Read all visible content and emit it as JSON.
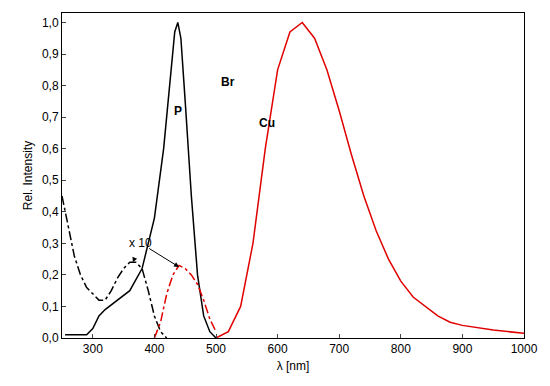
{
  "chart_data": {
    "type": "line",
    "x_label": "λ [nm]",
    "y_label": "Rel. Intensity",
    "xlim": [
      250,
      1000
    ],
    "ylim": [
      0,
      1.03
    ],
    "xticks": [
      300,
      400,
      500,
      600,
      700,
      800,
      900,
      1000
    ],
    "yticks": [
      {
        "value": 0,
        "label": "0,0"
      },
      {
        "value": 0.1,
        "label": "0,1"
      },
      {
        "value": 0.2,
        "label": "0,2"
      },
      {
        "value": 0.3,
        "label": "0,3"
      },
      {
        "value": 0.4,
        "label": "0,4"
      },
      {
        "value": 0.5,
        "label": "0,5"
      },
      {
        "value": 0.6,
        "label": "0,6"
      },
      {
        "value": 0.7,
        "label": "0,7"
      },
      {
        "value": 0.8,
        "label": "0,8"
      },
      {
        "value": 0.9,
        "label": "0,9"
      },
      {
        "value": 1,
        "label": "1,0"
      }
    ],
    "grid": false,
    "series": [
      {
        "color": "#000000",
        "line_style": "solid",
        "x": [
          255,
          270,
          290,
          300,
          310,
          320,
          340,
          360,
          380,
          400,
          415,
          425,
          433,
          438,
          443,
          450,
          460,
          470,
          480,
          490,
          500
        ],
        "values": [
          0.01,
          0.01,
          0.01,
          0.03,
          0.07,
          0.09,
          0.12,
          0.15,
          0.22,
          0.38,
          0.6,
          0.82,
          0.97,
          1.0,
          0.95,
          0.75,
          0.45,
          0.2,
          0.07,
          0.02,
          0.0
        ]
      },
      {
        "color": "#000000",
        "line_style": "dashdot",
        "x": [
          250,
          260,
          270,
          280,
          290,
          300,
          310,
          320,
          330,
          340,
          350,
          360,
          370,
          380,
          390,
          400,
          410,
          420
        ],
        "values": [
          0.45,
          0.35,
          0.26,
          0.2,
          0.16,
          0.14,
          0.12,
          0.12,
          0.15,
          0.19,
          0.22,
          0.24,
          0.24,
          0.22,
          0.15,
          0.07,
          0.02,
          0.0
        ]
      },
      {
        "color": "#e00000",
        "line_style": "dashdot",
        "x": [
          400,
          410,
          420,
          430,
          440,
          450,
          460,
          470,
          480,
          490,
          500
        ],
        "values": [
          0.0,
          0.05,
          0.14,
          0.2,
          0.23,
          0.22,
          0.2,
          0.17,
          0.12,
          0.06,
          0.02
        ]
      },
      {
        "color": "#e00000",
        "line_style": "solid",
        "x": [
          500,
          520,
          540,
          560,
          580,
          600,
          620,
          640,
          660,
          680,
          700,
          720,
          740,
          760,
          780,
          800,
          820,
          840,
          860,
          880,
          900,
          950,
          1000
        ],
        "values": [
          0.0,
          0.02,
          0.1,
          0.3,
          0.6,
          0.85,
          0.97,
          1.0,
          0.95,
          0.85,
          0.72,
          0.58,
          0.45,
          0.34,
          0.25,
          0.18,
          0.13,
          0.1,
          0.07,
          0.05,
          0.04,
          0.025,
          0.015
        ]
      }
    ],
    "annotations": [
      {
        "text": "x 10",
        "x": 378,
        "y": 0.3,
        "arrows": [
          [
            365,
            0.24
          ],
          [
            440,
            0.225
          ]
        ]
      },
      {
        "text": "P",
        "x": 439,
        "y": 0.72
      },
      {
        "text": "Br",
        "x": 520,
        "y": 0.81
      },
      {
        "text": "Cu",
        "x": 582,
        "y": 0.68
      }
    ]
  }
}
